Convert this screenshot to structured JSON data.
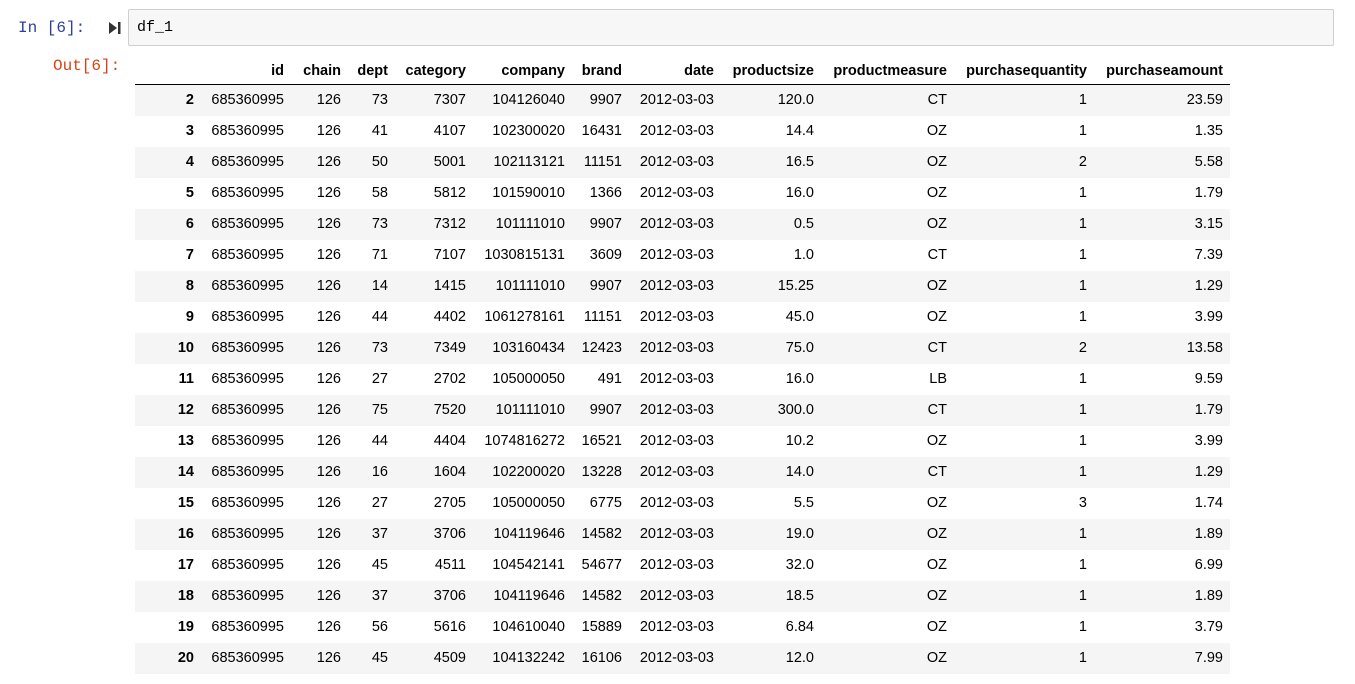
{
  "cell": {
    "in_prompt": "In [6]:",
    "out_prompt": "Out[6]:",
    "code": "df_1"
  },
  "icons": {
    "run": "run-cell-icon"
  },
  "table": {
    "columns": [
      "",
      "id",
      "chain",
      "dept",
      "category",
      "company",
      "brand",
      "date",
      "productsize",
      "productmeasure",
      "purchasequantity",
      "purchaseamount"
    ],
    "rows": [
      [
        "2",
        "685360995",
        "126",
        "73",
        "7307",
        "104126040",
        "9907",
        "2012-03-03",
        "120.0",
        "CT",
        "1",
        "23.59"
      ],
      [
        "3",
        "685360995",
        "126",
        "41",
        "4107",
        "102300020",
        "16431",
        "2012-03-03",
        "14.4",
        "OZ",
        "1",
        "1.35"
      ],
      [
        "4",
        "685360995",
        "126",
        "50",
        "5001",
        "102113121",
        "11151",
        "2012-03-03",
        "16.5",
        "OZ",
        "2",
        "5.58"
      ],
      [
        "5",
        "685360995",
        "126",
        "58",
        "5812",
        "101590010",
        "1366",
        "2012-03-03",
        "16.0",
        "OZ",
        "1",
        "1.79"
      ],
      [
        "6",
        "685360995",
        "126",
        "73",
        "7312",
        "101111010",
        "9907",
        "2012-03-03",
        "0.5",
        "OZ",
        "1",
        "3.15"
      ],
      [
        "7",
        "685360995",
        "126",
        "71",
        "7107",
        "1030815131",
        "3609",
        "2012-03-03",
        "1.0",
        "CT",
        "1",
        "7.39"
      ],
      [
        "8",
        "685360995",
        "126",
        "14",
        "1415",
        "101111010",
        "9907",
        "2012-03-03",
        "15.25",
        "OZ",
        "1",
        "1.29"
      ],
      [
        "9",
        "685360995",
        "126",
        "44",
        "4402",
        "1061278161",
        "11151",
        "2012-03-03",
        "45.0",
        "OZ",
        "1",
        "3.99"
      ],
      [
        "10",
        "685360995",
        "126",
        "73",
        "7349",
        "103160434",
        "12423",
        "2012-03-03",
        "75.0",
        "CT",
        "2",
        "13.58"
      ],
      [
        "11",
        "685360995",
        "126",
        "27",
        "2702",
        "105000050",
        "491",
        "2012-03-03",
        "16.0",
        "LB",
        "1",
        "9.59"
      ],
      [
        "12",
        "685360995",
        "126",
        "75",
        "7520",
        "101111010",
        "9907",
        "2012-03-03",
        "300.0",
        "CT",
        "1",
        "1.79"
      ],
      [
        "13",
        "685360995",
        "126",
        "44",
        "4404",
        "1074816272",
        "16521",
        "2012-03-03",
        "10.2",
        "OZ",
        "1",
        "3.99"
      ],
      [
        "14",
        "685360995",
        "126",
        "16",
        "1604",
        "102200020",
        "13228",
        "2012-03-03",
        "14.0",
        "CT",
        "1",
        "1.29"
      ],
      [
        "15",
        "685360995",
        "126",
        "27",
        "2705",
        "105000050",
        "6775",
        "2012-03-03",
        "5.5",
        "OZ",
        "3",
        "1.74"
      ],
      [
        "16",
        "685360995",
        "126",
        "37",
        "3706",
        "104119646",
        "14582",
        "2012-03-03",
        "19.0",
        "OZ",
        "1",
        "1.89"
      ],
      [
        "17",
        "685360995",
        "126",
        "45",
        "4511",
        "104542141",
        "54677",
        "2012-03-03",
        "32.0",
        "OZ",
        "1",
        "6.99"
      ],
      [
        "18",
        "685360995",
        "126",
        "37",
        "3706",
        "104119646",
        "14582",
        "2012-03-03",
        "18.5",
        "OZ",
        "1",
        "1.89"
      ],
      [
        "19",
        "685360995",
        "126",
        "56",
        "5616",
        "104610040",
        "15889",
        "2012-03-03",
        "6.84",
        "OZ",
        "1",
        "3.79"
      ],
      [
        "20",
        "685360995",
        "126",
        "45",
        "4509",
        "104132242",
        "16106",
        "2012-03-03",
        "12.0",
        "OZ",
        "1",
        "7.99"
      ]
    ]
  }
}
